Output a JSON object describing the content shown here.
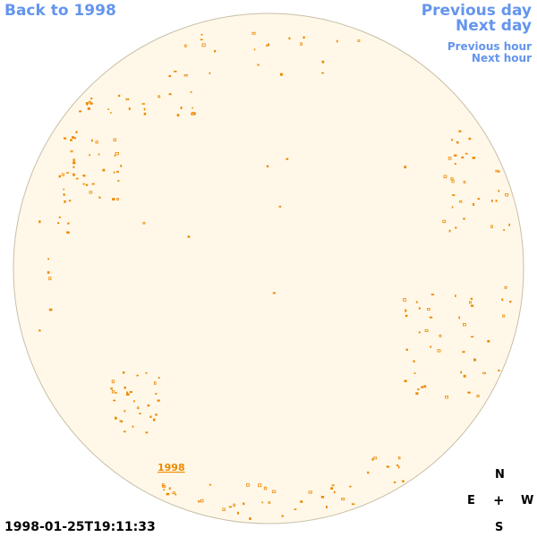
{
  "nav": {
    "back": "Back to 1998",
    "previous_day": "Previous day",
    "next_day": "Next day",
    "previous_hour": "Previous hour",
    "next_hour": "Next hour"
  },
  "disk": {
    "label": "1998",
    "fill_color": "#fff8e8",
    "edge_color": "#c8bfa8",
    "feature_color": "#ee8800"
  },
  "timestamp": "1998-01-25T19:11:33",
  "compass": {
    "north": "N",
    "east": "E",
    "center": "+",
    "west": "W",
    "south": "S"
  }
}
